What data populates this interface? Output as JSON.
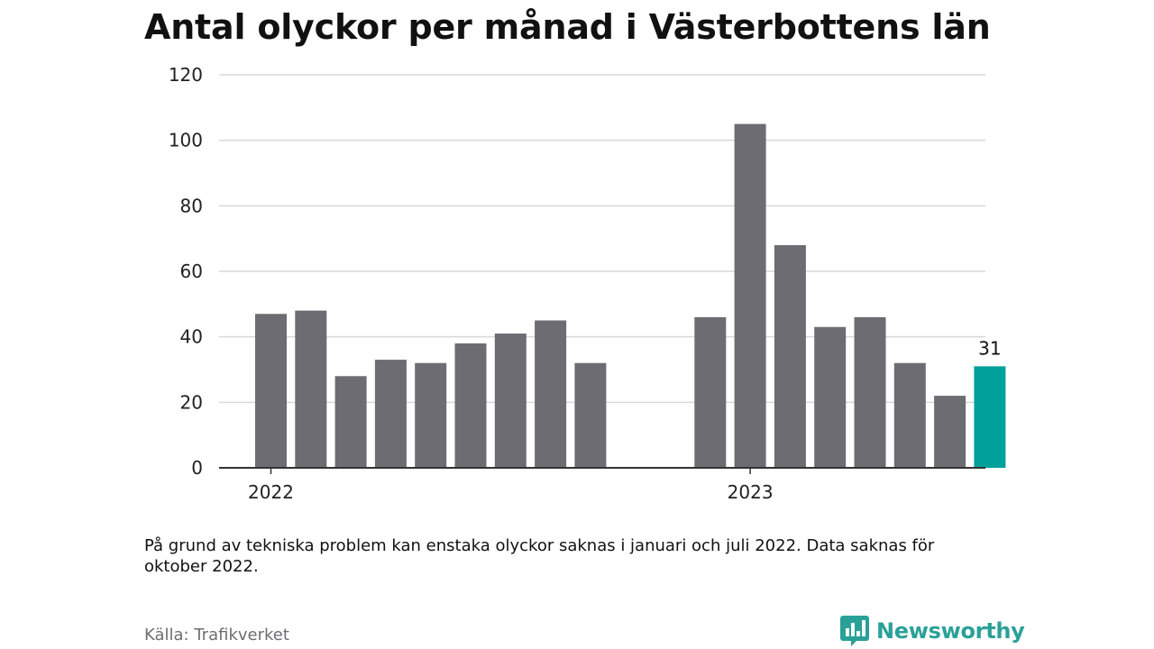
{
  "title": "Antal olyckor per månad i Västerbottens län",
  "note": "På grund av tekniska problem kan enstaka olyckor saknas i januari och juli 2022. Data saknas för oktober 2022.",
  "source": "Källa: Trafikverket",
  "brand": {
    "name": "Newsworthy",
    "icon": "bar-chart-speech-bubble-icon",
    "color": "#2aa198"
  },
  "chart_data": {
    "type": "bar",
    "title": "Antal olyckor per månad i Västerbottens län",
    "xlabel": "",
    "ylabel": "",
    "ylim": [
      0,
      120
    ],
    "yticks": [
      0,
      20,
      40,
      60,
      80,
      100,
      120
    ],
    "grid": true,
    "year_labels": [
      {
        "label": "2022",
        "month": "2022-01"
      },
      {
        "label": "2023",
        "month": "2023-01"
      }
    ],
    "categories": [
      "2022-01",
      "2022-02",
      "2022-03",
      "2022-04",
      "2022-05",
      "2022-06",
      "2022-07",
      "2022-08",
      "2022-09",
      "2022-10",
      "2022-11",
      "2022-12",
      "2023-01",
      "2023-02",
      "2023-03",
      "2023-04",
      "2023-05",
      "2023-06",
      "2023-07"
    ],
    "values": [
      47,
      48,
      28,
      33,
      32,
      38,
      41,
      45,
      32,
      null,
      null,
      46,
      105,
      68,
      43,
      46,
      32,
      22,
      31
    ],
    "highlight": {
      "month": "2023-07",
      "label": "31"
    },
    "colors": {
      "bar": "#6d6c72",
      "highlight": "#00a19a",
      "grid": "#d9d9d9",
      "axis": "#333333"
    }
  }
}
